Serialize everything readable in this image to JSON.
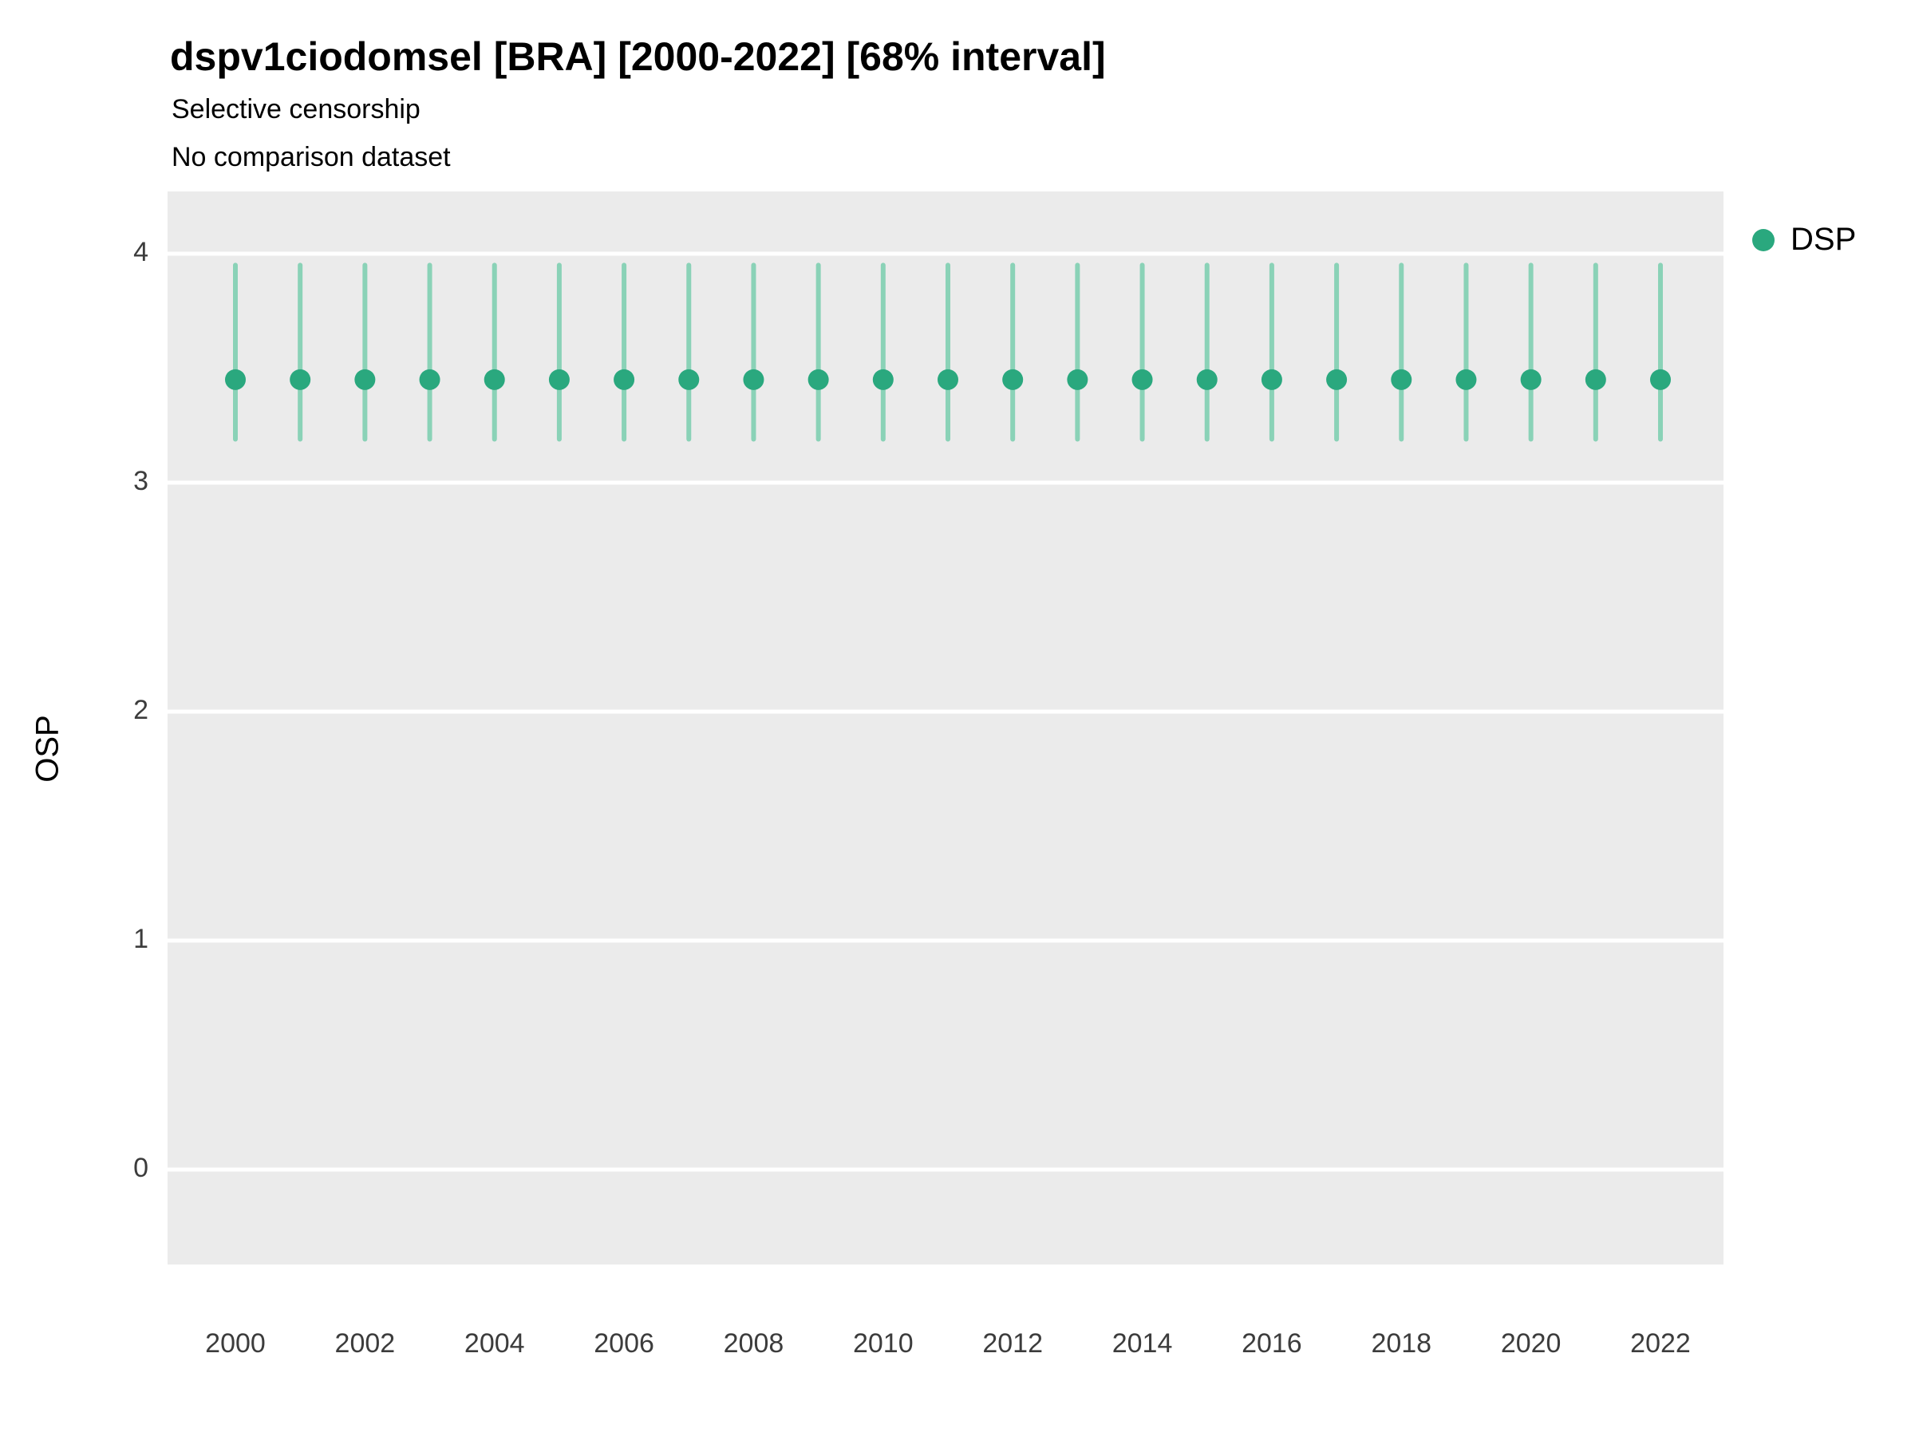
{
  "header": {
    "title": "dspv1ciodomsel [BRA] [2000-2022] [68% interval]",
    "subtitle1": "Selective censorship",
    "subtitle2": "No comparison dataset"
  },
  "legend": {
    "items": [
      {
        "label": "DSP",
        "color": "#2aa87e"
      }
    ]
  },
  "chart_data": {
    "type": "pointrange",
    "title": "dspv1ciodomsel [BRA] [2000-2022] [68% interval]",
    "subtitle": [
      "Selective censorship",
      "No comparison dataset"
    ],
    "interval": "68%",
    "xlabel": "",
    "ylabel": "OSP",
    "ylim": [
      -0.35,
      4.3
    ],
    "grid": true,
    "legend_position": "right",
    "x": [
      2000,
      2001,
      2002,
      2003,
      2004,
      2005,
      2006,
      2007,
      2008,
      2009,
      2010,
      2011,
      2012,
      2013,
      2014,
      2015,
      2016,
      2017,
      2018,
      2019,
      2020,
      2021,
      2022
    ],
    "series": [
      {
        "name": "DSP",
        "y": [
          3.45,
          3.45,
          3.45,
          3.45,
          3.45,
          3.45,
          3.45,
          3.45,
          3.45,
          3.45,
          3.45,
          3.45,
          3.45,
          3.45,
          3.45,
          3.45,
          3.45,
          3.45,
          3.45,
          3.45,
          3.45,
          3.45,
          3.45
        ],
        "ymin": [
          3.19,
          3.19,
          3.19,
          3.19,
          3.19,
          3.19,
          3.19,
          3.19,
          3.19,
          3.19,
          3.19,
          3.19,
          3.19,
          3.19,
          3.19,
          3.19,
          3.19,
          3.19,
          3.19,
          3.19,
          3.19,
          3.19,
          3.19
        ],
        "ymax": [
          3.95,
          3.95,
          3.95,
          3.95,
          3.95,
          3.95,
          3.95,
          3.95,
          3.95,
          3.95,
          3.95,
          3.95,
          3.95,
          3.95,
          3.95,
          3.95,
          3.95,
          3.95,
          3.95,
          3.95,
          3.95,
          3.95,
          3.95
        ]
      }
    ],
    "y_ticks": [
      0,
      1,
      2,
      3,
      4
    ],
    "x_ticks": [
      2000,
      2002,
      2004,
      2006,
      2008,
      2010,
      2012,
      2014,
      2016,
      2018,
      2020,
      2022
    ],
    "panel_bg": "#EBEBEB",
    "grid_color": "#FFFFFF",
    "point_color": "#2aa87e",
    "range_color": "#8ad2b7",
    "tick_label_color": "#3c3c3c"
  }
}
